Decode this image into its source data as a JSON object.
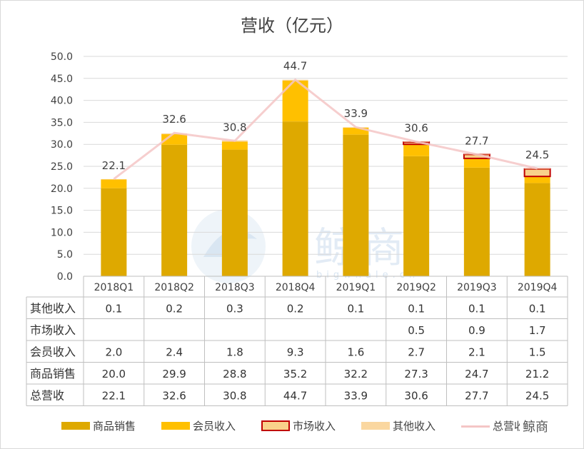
{
  "chart_data": {
    "type": "bar",
    "title": "营收（亿元）",
    "categories": [
      "2018Q1",
      "2018Q2",
      "2018Q3",
      "2018Q4",
      "2019Q1",
      "2019Q2",
      "2019Q3",
      "2019Q4"
    ],
    "ylim": [
      0,
      50
    ],
    "yticks": [
      "0.0",
      "5.0",
      "10.0",
      "15.0",
      "20.0",
      "25.0",
      "30.0",
      "35.0",
      "40.0",
      "45.0",
      "50.0"
    ],
    "series": [
      {
        "name": "商品销售",
        "values": [
          20.0,
          29.9,
          28.8,
          35.2,
          32.2,
          27.3,
          24.7,
          21.2
        ],
        "color": "#DEA900"
      },
      {
        "name": "会员收入",
        "values": [
          2.0,
          2.4,
          1.8,
          9.3,
          1.6,
          2.7,
          2.1,
          1.5
        ],
        "color": "#FFC000"
      },
      {
        "name": "市场收入",
        "values": [
          null,
          null,
          null,
          null,
          null,
          0.5,
          0.9,
          1.7
        ],
        "color": "#F9D18A",
        "border": "#C00000"
      },
      {
        "name": "其他收入",
        "values": [
          0.1,
          0.2,
          0.3,
          0.2,
          0.1,
          0.1,
          0.1,
          0.1
        ],
        "color": "#FAD7A0"
      },
      {
        "name": "总营收",
        "values": [
          22.1,
          32.6,
          30.8,
          44.7,
          33.9,
          30.6,
          27.7,
          24.5
        ],
        "color": "#F4C6C6",
        "kind": "line"
      }
    ],
    "total_labels": [
      "22.1",
      "32.6",
      "30.8",
      "44.7",
      "33.9",
      "30.6",
      "27.7",
      "24.5"
    ],
    "table": {
      "rows": [
        {
          "label": "其他收入",
          "cells": [
            "0.1",
            "0.2",
            "0.3",
            "0.2",
            "0.1",
            "0.1",
            "0.1",
            "0.1"
          ]
        },
        {
          "label": "市场收入",
          "cells": [
            "",
            "",
            "",
            "",
            "",
            "0.5",
            "0.9",
            "1.7"
          ]
        },
        {
          "label": "会员收入",
          "cells": [
            "2.0",
            "2.4",
            "1.8",
            "9.3",
            "1.6",
            "2.7",
            "2.1",
            "1.5"
          ]
        },
        {
          "label": "商品销售",
          "cells": [
            "20.0",
            "29.9",
            "28.8",
            "35.2",
            "32.2",
            "27.3",
            "24.7",
            "21.2"
          ]
        },
        {
          "label": "总营收",
          "cells": [
            "22.1",
            "32.6",
            "30.8",
            "44.7",
            "33.9",
            "30.6",
            "27.7",
            "24.5"
          ]
        }
      ]
    }
  },
  "watermark": {
    "main": "鲸商",
    "sub": "bigwhale.cn"
  },
  "brand": "鲸商"
}
